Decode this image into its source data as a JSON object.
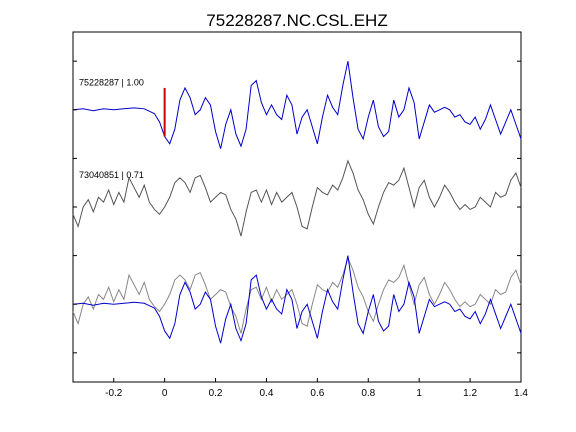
{
  "chart_data": {
    "type": "line",
    "title": "75228287.NC.CSL.EHZ",
    "xlabel": "",
    "ylabel": "",
    "xlim": [
      -0.36,
      1.4
    ],
    "x_ticks": [
      -0.2,
      0,
      0.2,
      0.4,
      0.6,
      0.8,
      1,
      1.2,
      1.4
    ],
    "x_tick_labels": [
      "-0.2",
      "0",
      "0.2",
      "0.4",
      "0.6",
      "0.8",
      "1",
      "1.2",
      "1.4"
    ],
    "y_ticks": [
      0,
      1,
      2,
      3,
      4,
      5,
      6
    ],
    "ylim": [
      -0.6,
      6.6
    ],
    "grid": false,
    "pick_marker": {
      "x": 0,
      "color": "#d00000",
      "trace": "75228287"
    },
    "colors": {
      "primary": "#0000cc",
      "secondary": "#555555",
      "overlay_secondary": "#888888",
      "pick": "#d00000"
    },
    "series": [
      {
        "label": "75228287 | 1.00",
        "color": "#0000cc",
        "baseline": 5,
        "x": [
          -0.36,
          -0.32,
          -0.28,
          -0.24,
          -0.2,
          -0.16,
          -0.12,
          -0.08,
          -0.04,
          -0.02,
          0,
          0.02,
          0.04,
          0.06,
          0.08,
          0.1,
          0.12,
          0.14,
          0.16,
          0.18,
          0.2,
          0.22,
          0.24,
          0.26,
          0.28,
          0.3,
          0.32,
          0.34,
          0.36,
          0.38,
          0.4,
          0.42,
          0.44,
          0.46,
          0.48,
          0.5,
          0.52,
          0.54,
          0.56,
          0.58,
          0.6,
          0.62,
          0.64,
          0.66,
          0.68,
          0.7,
          0.72,
          0.74,
          0.76,
          0.78,
          0.8,
          0.82,
          0.84,
          0.86,
          0.88,
          0.9,
          0.92,
          0.94,
          0.96,
          0.98,
          1,
          1.02,
          1.04,
          1.06,
          1.08,
          1.1,
          1.12,
          1.14,
          1.16,
          1.18,
          1.2,
          1.22,
          1.24,
          1.26,
          1.28,
          1.3,
          1.32,
          1.34,
          1.36,
          1.38,
          1.4
        ],
        "y": [
          5,
          5.02,
          4.98,
          5.02,
          5.0,
          5.02,
          5.04,
          5.02,
          4.92,
          4.75,
          4.45,
          4.3,
          4.6,
          5.2,
          5.45,
          5.25,
          4.9,
          5.0,
          5.25,
          5.1,
          4.55,
          4.2,
          4.7,
          5.0,
          4.5,
          4.25,
          4.6,
          5.5,
          5.6,
          5.15,
          4.9,
          5.1,
          4.9,
          4.8,
          5.3,
          5.1,
          4.5,
          4.85,
          5.0,
          4.65,
          4.3,
          4.85,
          5.3,
          5.05,
          4.9,
          5.5,
          6.0,
          5.25,
          4.6,
          4.4,
          4.85,
          5.2,
          4.65,
          4.45,
          4.55,
          5.2,
          4.85,
          5.0,
          5.45,
          5.15,
          4.4,
          4.75,
          5.1,
          4.95,
          5.0,
          5.05,
          5.0,
          4.85,
          4.9,
          4.75,
          4.7,
          4.85,
          4.6,
          4.8,
          5.1,
          4.8,
          4.5,
          4.75,
          5.0,
          4.7,
          4.4
        ]
      },
      {
        "label": "73040851 | 0.71",
        "color": "#555555",
        "baseline": 3,
        "x": [
          -0.36,
          -0.34,
          -0.32,
          -0.3,
          -0.28,
          -0.26,
          -0.24,
          -0.22,
          -0.2,
          -0.18,
          -0.16,
          -0.14,
          -0.12,
          -0.1,
          -0.08,
          -0.06,
          -0.04,
          -0.02,
          0,
          0.02,
          0.04,
          0.06,
          0.08,
          0.1,
          0.12,
          0.14,
          0.16,
          0.18,
          0.2,
          0.22,
          0.24,
          0.26,
          0.28,
          0.3,
          0.32,
          0.34,
          0.36,
          0.38,
          0.4,
          0.42,
          0.44,
          0.46,
          0.48,
          0.5,
          0.52,
          0.54,
          0.56,
          0.58,
          0.6,
          0.62,
          0.64,
          0.66,
          0.68,
          0.7,
          0.72,
          0.74,
          0.76,
          0.78,
          0.8,
          0.82,
          0.84,
          0.86,
          0.88,
          0.9,
          0.92,
          0.94,
          0.96,
          0.98,
          1,
          1.02,
          1.04,
          1.06,
          1.08,
          1.1,
          1.12,
          1.14,
          1.16,
          1.18,
          1.2,
          1.22,
          1.24,
          1.26,
          1.28,
          1.3,
          1.32,
          1.34,
          1.36,
          1.38,
          1.4
        ],
        "y": [
          2.85,
          2.6,
          3.0,
          3.15,
          2.9,
          3.2,
          3.1,
          3.35,
          3.05,
          3.3,
          3.1,
          3.6,
          3.4,
          3.2,
          3.45,
          3.1,
          2.95,
          2.85,
          3.0,
          3.2,
          3.5,
          3.6,
          3.5,
          3.3,
          3.6,
          3.65,
          3.4,
          3.1,
          3.2,
          3.3,
          3.25,
          2.95,
          2.75,
          2.4,
          2.9,
          3.3,
          3.35,
          3.1,
          3.35,
          3.05,
          3.3,
          3.1,
          3.2,
          3.3,
          3.0,
          2.6,
          2.55,
          3.0,
          3.4,
          3.3,
          3.25,
          3.45,
          3.35,
          3.6,
          3.95,
          3.7,
          3.35,
          3.15,
          2.85,
          2.65,
          3.0,
          3.3,
          3.5,
          3.45,
          3.55,
          3.8,
          3.4,
          3.0,
          3.4,
          3.55,
          3.2,
          3.0,
          3.2,
          3.45,
          3.3,
          3.1,
          2.95,
          3.05,
          2.95,
          3.0,
          3.2,
          3.1,
          3.0,
          3.3,
          3.2,
          3.25,
          3.55,
          3.7,
          3.4
        ]
      },
      {
        "label": "overlay",
        "color": "#0000cc",
        "baseline": 1,
        "overlay_of": [
          "75228287 | 1.00",
          "73040851 | 0.71"
        ]
      }
    ]
  }
}
